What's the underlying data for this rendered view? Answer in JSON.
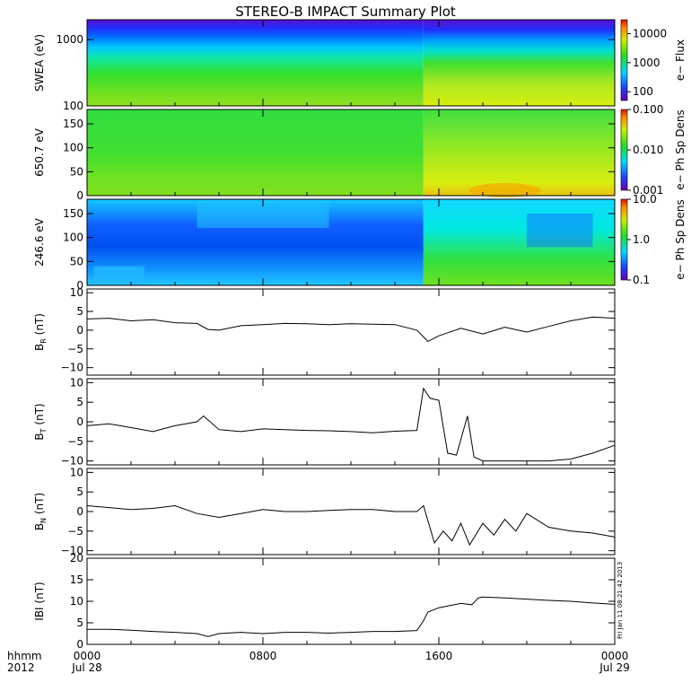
{
  "title": "STEREO-B IMPACT Summary Plot",
  "stamp": "Fri Jan 11 08:21:42 2013",
  "x_axis": {
    "row_label": "hhmm",
    "year_label": "2012",
    "ticks": [
      {
        "x": 0,
        "time": "0000",
        "date": "Jul 28"
      },
      {
        "x": 8,
        "time": "0800",
        "date": ""
      },
      {
        "x": 16,
        "time": "1600",
        "date": ""
      },
      {
        "x": 24,
        "time": "0000",
        "date": "Jul 29"
      }
    ],
    "range": [
      0,
      24
    ],
    "minor_hours": [
      2,
      4,
      6,
      10,
      12,
      14,
      18,
      20,
      22
    ]
  },
  "colors": {
    "spectrogram_scale": [
      "#6a00b0",
      "#1e3cff",
      "#00d8ff",
      "#22dd22",
      "#ccee00",
      "#ff8800",
      "#dd1100"
    ],
    "line": "#000000"
  },
  "chart_data": [
    {
      "type": "heatmap",
      "ylabel": "SWEA (eV)",
      "ylog": true,
      "ylim": [
        100,
        2000
      ],
      "yticks": [
        {
          "v": 100,
          "label": "100"
        },
        {
          "v": 1000,
          "label": "1000"
        }
      ],
      "colorbar": {
        "label": "e− Flux",
        "log": true,
        "range": [
          50,
          30000
        ],
        "ticks": [
          {
            "v": 100,
            "label": "100"
          },
          {
            "v": 1000,
            "label": "1000"
          },
          {
            "v": 10000,
            "label": "10000"
          }
        ]
      }
    },
    {
      "type": "heatmap",
      "ylabel": "650.7 eV",
      "ylog": false,
      "ylim": [
        0,
        180
      ],
      "yticks": [
        {
          "v": 0,
          "label": "0"
        },
        {
          "v": 50,
          "label": "50"
        },
        {
          "v": 100,
          "label": "100"
        },
        {
          "v": 150,
          "label": "150"
        }
      ],
      "colorbar": {
        "label": "e− Ph Sp Dens",
        "log": true,
        "range": [
          0.001,
          0.1
        ],
        "ticks": [
          {
            "v": 0.001,
            "label": "0.001"
          },
          {
            "v": 0.01,
            "label": "0.010"
          },
          {
            "v": 0.1,
            "label": "0.100"
          }
        ]
      }
    },
    {
      "type": "heatmap",
      "ylabel": "246.6 eV",
      "ylog": false,
      "ylim": [
        0,
        180
      ],
      "yticks": [
        {
          "v": 0,
          "label": "0"
        },
        {
          "v": 50,
          "label": "50"
        },
        {
          "v": 100,
          "label": "100"
        },
        {
          "v": 150,
          "label": "150"
        }
      ],
      "colorbar": {
        "label": "e− Ph Sp Dens",
        "log": true,
        "range": [
          0.1,
          10
        ],
        "ticks": [
          {
            "v": 0.1,
            "label": "0.1"
          },
          {
            "v": 1,
            "label": "1.0"
          },
          {
            "v": 10,
            "label": "10.0"
          }
        ]
      }
    },
    {
      "type": "line",
      "ylabel": "B_R (nT)",
      "ylabel_main": "B",
      "ylabel_sub": "R",
      "ylabel_unit": " (nT)",
      "ylim": [
        -12,
        11
      ],
      "yticks": [
        {
          "v": 10,
          "label": "10"
        },
        {
          "v": 5,
          "label": "5"
        },
        {
          "v": 0,
          "label": "0"
        },
        {
          "v": -5,
          "label": "−5"
        },
        {
          "v": -10,
          "label": "−10"
        }
      ],
      "x": [
        0,
        1,
        2,
        3,
        4,
        5,
        5.5,
        6,
        7,
        8,
        9,
        10,
        11,
        12,
        13,
        14,
        15,
        15.5,
        16,
        17,
        18,
        19,
        20,
        21,
        22,
        23,
        24
      ],
      "y": [
        3,
        3.2,
        2.5,
        2.8,
        2.0,
        1.8,
        0.2,
        0,
        1.2,
        1.5,
        1.8,
        1.7,
        1.5,
        1.7,
        1.6,
        1.5,
        0,
        -3,
        -1.5,
        0.5,
        -1.0,
        0.8,
        -0.5,
        1.0,
        2.5,
        3.5,
        3.2
      ]
    },
    {
      "type": "line",
      "ylabel": "B_T (nT)",
      "ylabel_main": "B",
      "ylabel_sub": "T",
      "ylabel_unit": " (nT)",
      "ylim": [
        -11,
        11
      ],
      "yticks": [
        {
          "v": 10,
          "label": "10"
        },
        {
          "v": 5,
          "label": "5"
        },
        {
          "v": 0,
          "label": "0"
        },
        {
          "v": -5,
          "label": "−5"
        },
        {
          "v": -10,
          "label": "−10"
        }
      ],
      "x": [
        0,
        1,
        2,
        3,
        4,
        5,
        5.3,
        6,
        7,
        8,
        9,
        10,
        11,
        12,
        13,
        14,
        15,
        15.3,
        15.6,
        16,
        16.4,
        16.8,
        17.3,
        17.6,
        18,
        18.5,
        19,
        20,
        21,
        22,
        23,
        24
      ],
      "y": [
        -1.0,
        -0.5,
        -1.5,
        -2.5,
        -1.0,
        0,
        1.5,
        -2.0,
        -2.5,
        -1.8,
        -2.0,
        -2.2,
        -2.3,
        -2.5,
        -2.8,
        -2.4,
        -2.2,
        8.5,
        6.0,
        5.5,
        -8.0,
        -8.5,
        1.5,
        -9.0,
        -10.0,
        -10.0,
        -10.0,
        -10.0,
        -10.0,
        -9.5,
        -8.0,
        -6.0
      ]
    },
    {
      "type": "line",
      "ylabel": "B_N (nT)",
      "ylabel_main": "B",
      "ylabel_sub": "N",
      "ylabel_unit": " (nT)",
      "ylim": [
        -11,
        11
      ],
      "yticks": [
        {
          "v": 10,
          "label": "10"
        },
        {
          "v": 5,
          "label": "5"
        },
        {
          "v": 0,
          "label": "0"
        },
        {
          "v": -5,
          "label": "−5"
        },
        {
          "v": -10,
          "label": "−10"
        }
      ],
      "x": [
        0,
        1,
        2,
        3,
        4,
        5,
        6,
        7,
        8,
        9,
        10,
        11,
        12,
        13,
        14,
        15,
        15.3,
        15.8,
        16.2,
        16.6,
        17,
        17.4,
        18,
        18.5,
        19,
        19.5,
        20,
        21,
        22,
        23,
        24
      ],
      "y": [
        1.5,
        1.0,
        0.5,
        0.8,
        1.5,
        -0.5,
        -1.5,
        -0.5,
        0.5,
        0,
        0,
        0.3,
        0.5,
        0.5,
        0,
        0,
        1.5,
        -8.0,
        -5.0,
        -7.5,
        -3.0,
        -8.5,
        -3.0,
        -6.0,
        -2.0,
        -5.0,
        -0.5,
        -4.0,
        -5.0,
        -5.5,
        -6.5
      ]
    },
    {
      "type": "line",
      "ylabel": "|B| (nT)",
      "ylabel_main": "IBI",
      "ylabel_sub": "",
      "ylabel_unit": " (nT)",
      "ylim": [
        0,
        20
      ],
      "yticks": [
        {
          "v": 20,
          "label": "20"
        },
        {
          "v": 15,
          "label": "15"
        },
        {
          "v": 10,
          "label": "10"
        },
        {
          "v": 5,
          "label": "5"
        },
        {
          "v": 0,
          "label": "0"
        }
      ],
      "x": [
        0,
        1,
        2,
        3,
        4,
        5,
        5.5,
        6,
        7,
        8,
        9,
        10,
        11,
        12,
        13,
        14,
        15,
        15.3,
        15.5,
        16,
        16.5,
        17,
        17.5,
        17.8,
        18,
        19,
        20,
        21,
        22,
        23,
        24
      ],
      "y": [
        3.5,
        3.5,
        3.3,
        3.0,
        2.8,
        2.5,
        1.8,
        2.5,
        2.8,
        2.5,
        2.8,
        2.8,
        2.6,
        2.8,
        3.0,
        3.0,
        3.2,
        5.5,
        7.5,
        8.5,
        9.0,
        9.5,
        9.2,
        10.8,
        11.0,
        10.8,
        10.5,
        10.2,
        10.0,
        9.6,
        9.3
      ]
    }
  ]
}
